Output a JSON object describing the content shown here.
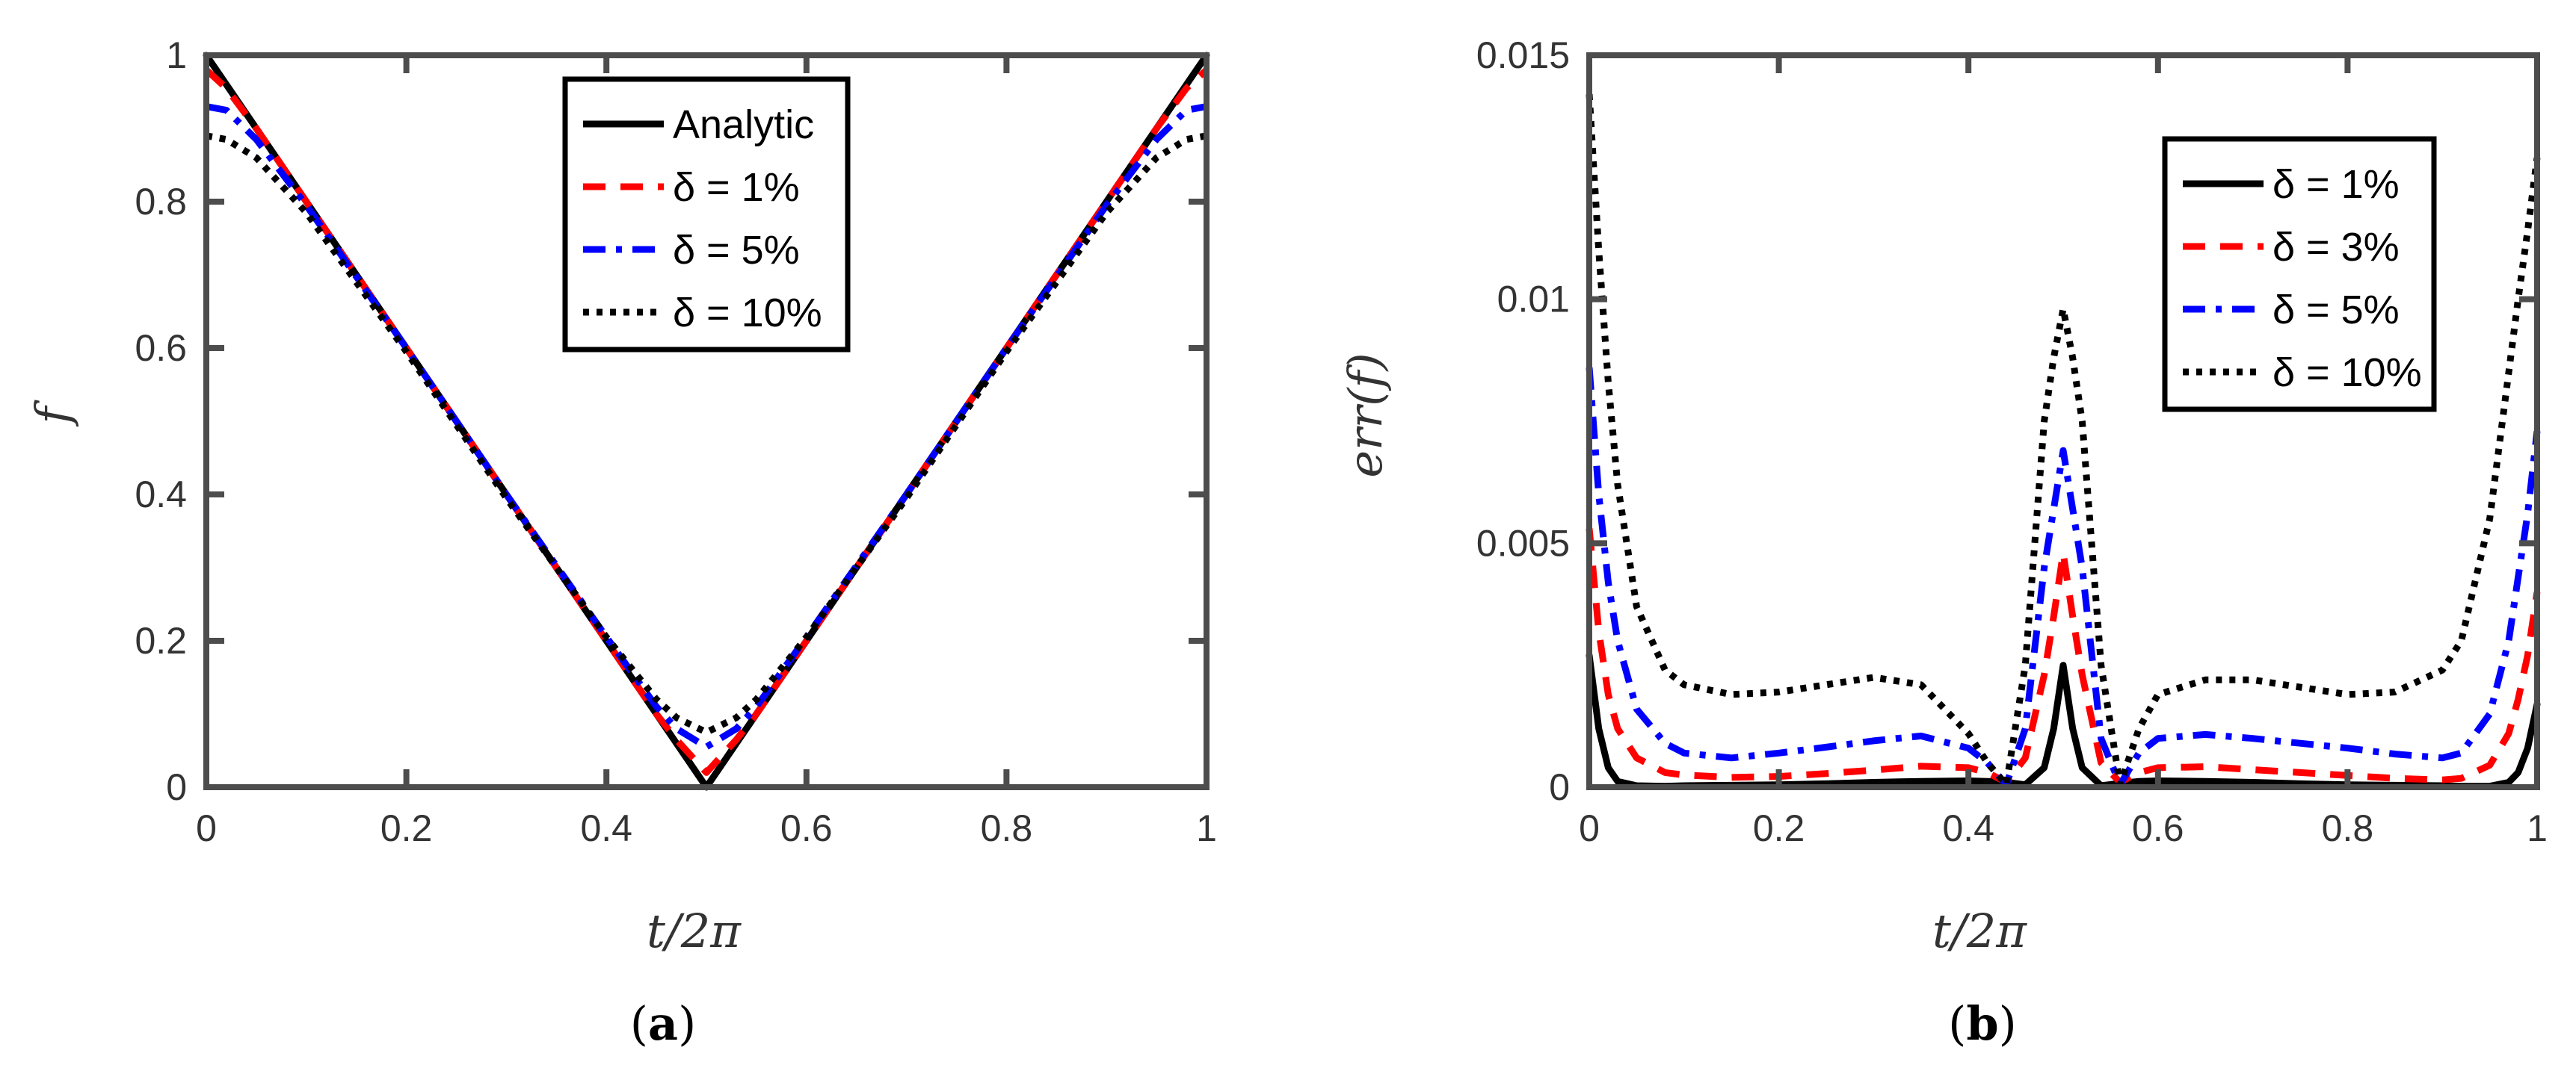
{
  "figure": {
    "captions": {
      "a": {
        "open": "(",
        "letter": "a",
        "close": ")"
      },
      "b": {
        "open": "(",
        "letter": "b",
        "close": ")"
      }
    }
  },
  "chart_data": [
    {
      "id": "a",
      "type": "line",
      "xlabel": "t/2π",
      "ylabel": "f",
      "xlim": [
        0,
        1
      ],
      "ylim": [
        0,
        1
      ],
      "xticks": [
        0,
        0.2,
        0.4,
        0.6,
        0.8,
        1
      ],
      "xtick_labels": [
        "0",
        "0.2",
        "0.4",
        "0.6",
        "0.8",
        "1"
      ],
      "yticks": [
        0,
        0.2,
        0.4,
        0.6,
        0.8,
        1
      ],
      "ytick_labels": [
        "0",
        "0.2",
        "0.4",
        "0.6",
        "0.8",
        "1"
      ],
      "grid": false,
      "legend_position": "top-center",
      "x": [
        0,
        0.02,
        0.05,
        0.1,
        0.2,
        0.3,
        0.4,
        0.45,
        0.47,
        0.5,
        0.53,
        0.55,
        0.6,
        0.7,
        0.8,
        0.9,
        0.95,
        0.98,
        1
      ],
      "series": [
        {
          "name": "Analytic",
          "label": "Analytic",
          "color": "#000000",
          "style": "solid",
          "values": [
            1,
            0.96,
            0.9,
            0.8,
            0.6,
            0.4,
            0.2,
            0.1,
            0.06,
            0,
            0.06,
            0.1,
            0.2,
            0.4,
            0.6,
            0.8,
            0.9,
            0.96,
            1
          ]
        },
        {
          "name": "delta = 1%",
          "label": "δ = 1%",
          "color": "#ff0000",
          "style": "dash",
          "values": [
            0.98,
            0.955,
            0.9,
            0.8,
            0.6,
            0.4,
            0.2,
            0.1,
            0.065,
            0.02,
            0.065,
            0.1,
            0.2,
            0.4,
            0.6,
            0.8,
            0.9,
            0.955,
            0.98
          ]
        },
        {
          "name": "delta = 5%",
          "label": "δ = 5%",
          "color": "#0000ff",
          "style": "dashdot",
          "values": [
            0.93,
            0.925,
            0.885,
            0.795,
            0.6,
            0.4,
            0.205,
            0.11,
            0.08,
            0.055,
            0.08,
            0.11,
            0.205,
            0.4,
            0.6,
            0.795,
            0.885,
            0.925,
            0.93
          ]
        },
        {
          "name": "delta = 10%",
          "label": "δ = 10%",
          "color": "#000000",
          "style": "dot",
          "values": [
            0.89,
            0.885,
            0.86,
            0.785,
            0.595,
            0.395,
            0.205,
            0.12,
            0.095,
            0.075,
            0.095,
            0.12,
            0.205,
            0.395,
            0.595,
            0.785,
            0.86,
            0.885,
            0.89
          ]
        }
      ]
    },
    {
      "id": "b",
      "type": "line",
      "xlabel": "t/2π",
      "ylabel": "err(f)",
      "xlim": [
        0,
        1
      ],
      "ylim": [
        0,
        0.015
      ],
      "xticks": [
        0,
        0.2,
        0.4,
        0.6,
        0.8,
        1
      ],
      "xtick_labels": [
        "0",
        "0.2",
        "0.4",
        "0.6",
        "0.8",
        "1"
      ],
      "yticks": [
        0,
        0.005,
        0.01,
        0.015
      ],
      "ytick_labels": [
        "0",
        "0.005",
        "0.01",
        "0.015"
      ],
      "grid": false,
      "legend_position": "top-right",
      "x": [
        0,
        0.01,
        0.02,
        0.03,
        0.05,
        0.08,
        0.1,
        0.15,
        0.2,
        0.25,
        0.3,
        0.35,
        0.4,
        0.42,
        0.44,
        0.46,
        0.48,
        0.49,
        0.5,
        0.51,
        0.52,
        0.54,
        0.56,
        0.58,
        0.6,
        0.65,
        0.7,
        0.75,
        0.8,
        0.85,
        0.9,
        0.92,
        0.95,
        0.97,
        0.98,
        0.99,
        1
      ],
      "series": [
        {
          "name": "delta = 1%",
          "label": "δ = 1%",
          "color": "#000000",
          "style": "solid",
          "values": [
            0.0027,
            0.0012,
            0.0004,
            0.00012,
            3e-05,
            2e-05,
            3e-05,
            4e-05,
            5e-05,
            7e-05,
            0.0001,
            0.00012,
            0.00013,
            0.00012,
            0.0001,
            5e-05,
            0.0004,
            0.0012,
            0.0025,
            0.0012,
            0.0004,
            3e-05,
            8e-05,
            0.00012,
            0.00013,
            0.00012,
            0.0001,
            7e-05,
            5e-05,
            4e-05,
            3e-05,
            2e-05,
            2e-05,
            0.0001,
            0.0003,
            0.0008,
            0.0017
          ]
        },
        {
          "name": "delta = 3%",
          "label": "δ = 3%",
          "color": "#ff0000",
          "style": "dash",
          "values": [
            0.0053,
            0.0032,
            0.0019,
            0.0012,
            0.0006,
            0.0003,
            0.00025,
            0.0002,
            0.00022,
            0.00028,
            0.00035,
            0.00043,
            0.0004,
            0.0003,
            0.0001,
            0.0006,
            0.0023,
            0.0035,
            0.0048,
            0.0035,
            0.0023,
            0.0005,
            0.0001,
            0.0003,
            0.0004,
            0.00042,
            0.00036,
            0.0003,
            0.00024,
            0.00018,
            0.00015,
            0.00018,
            0.00045,
            0.0011,
            0.0018,
            0.0027,
            0.004
          ]
        },
        {
          "name": "delta = 5%",
          "label": "δ = 5%",
          "color": "#0000ff",
          "style": "dashdot",
          "values": [
            0.0086,
            0.006,
            0.0042,
            0.003,
            0.0016,
            0.0009,
            0.0007,
            0.0006,
            0.0007,
            0.00082,
            0.00095,
            0.00105,
            0.0008,
            0.0005,
            5e-05,
            0.0012,
            0.0045,
            0.0057,
            0.0069,
            0.0057,
            0.0045,
            0.001,
            5e-05,
            0.0007,
            0.001,
            0.00108,
            0.001,
            0.0009,
            0.0008,
            0.00068,
            0.0006,
            0.0007,
            0.0015,
            0.003,
            0.0043,
            0.0056,
            0.0073
          ]
        },
        {
          "name": "delta = 10%",
          "label": "δ = 10%",
          "color": "#000000",
          "style": "dot",
          "values": [
            0.0142,
            0.011,
            0.0083,
            0.0062,
            0.0037,
            0.0024,
            0.0021,
            0.0019,
            0.00195,
            0.0021,
            0.00225,
            0.0021,
            0.0011,
            0.0005,
            5e-05,
            0.0025,
            0.0075,
            0.0088,
            0.0098,
            0.0088,
            0.0075,
            0.0025,
            5e-05,
            0.0012,
            0.0019,
            0.0022,
            0.0022,
            0.00205,
            0.0019,
            0.00195,
            0.0024,
            0.003,
            0.0055,
            0.0085,
            0.01,
            0.0114,
            0.0129
          ]
        }
      ]
    }
  ]
}
